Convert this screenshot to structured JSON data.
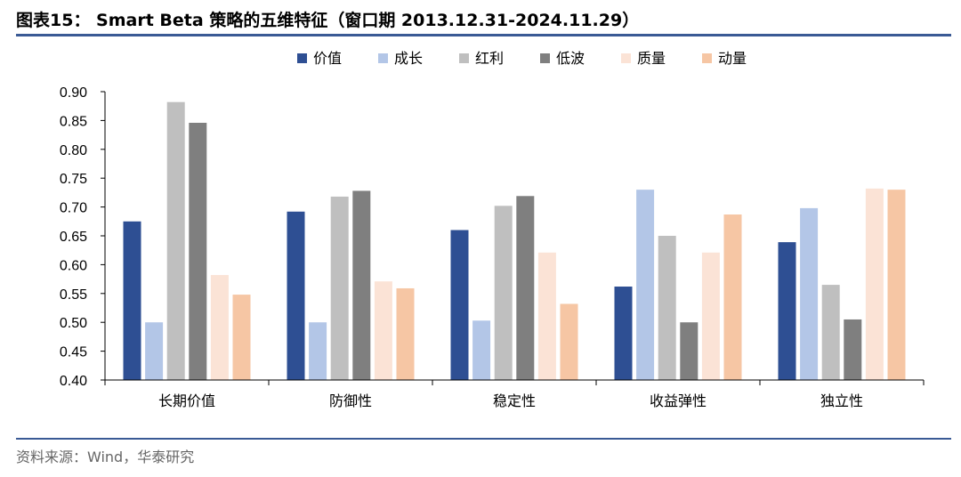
{
  "header": {
    "title": "图表15： Smart Beta 策略的五维特征（窗口期 2013.12.31-2024.11.29）"
  },
  "footer": {
    "source": "资料来源：Wind，华泰研究"
  },
  "chart_data": {
    "type": "bar",
    "categories": [
      "长期价值",
      "防御性",
      "稳定性",
      "收益弹性",
      "独立性"
    ],
    "ylim": [
      0.4,
      0.9
    ],
    "yticks": [
      "0.90",
      "0.85",
      "0.80",
      "0.75",
      "0.70",
      "0.65",
      "0.60",
      "0.55",
      "0.50",
      "0.45",
      "0.40"
    ],
    "legend_position": "top-center",
    "grid": false,
    "series": [
      {
        "name": "价值",
        "color": "#2e4f93",
        "values": [
          0.675,
          0.692,
          0.66,
          0.562,
          0.639
        ]
      },
      {
        "name": "成长",
        "color": "#b3c6e7",
        "values": [
          0.5,
          0.5,
          0.503,
          0.73,
          0.698
        ]
      },
      {
        "name": "红利",
        "color": "#bfbfbf",
        "values": [
          0.882,
          0.718,
          0.702,
          0.65,
          0.565
        ]
      },
      {
        "name": "低波",
        "color": "#7f7f7f",
        "values": [
          0.846,
          0.728,
          0.719,
          0.5,
          0.505
        ]
      },
      {
        "name": "质量",
        "color": "#fbe3d6",
        "values": [
          0.582,
          0.571,
          0.621,
          0.621,
          0.732
        ]
      },
      {
        "name": "动量",
        "color": "#f6c6a4",
        "values": [
          0.548,
          0.559,
          0.532,
          0.687,
          0.73
        ]
      }
    ]
  }
}
